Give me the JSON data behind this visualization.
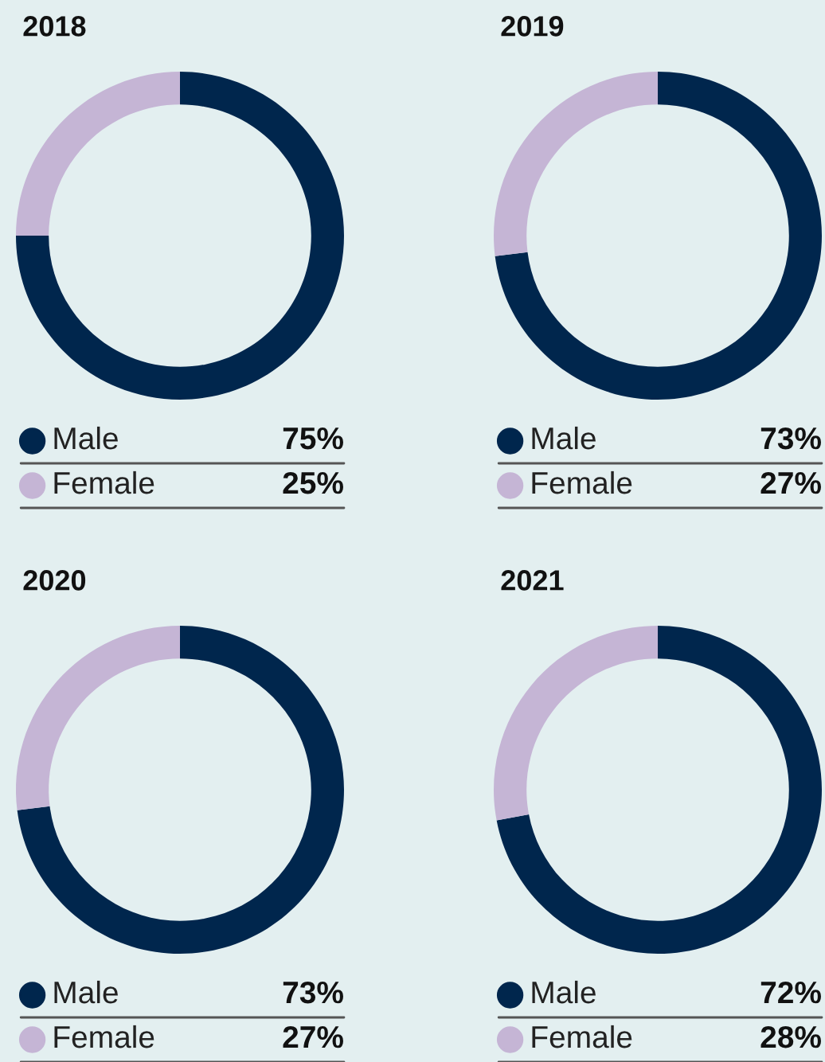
{
  "chart_data": [
    {
      "type": "donut",
      "title": "2018",
      "categories": [
        "Male",
        "Female"
      ],
      "values": [
        75,
        25
      ],
      "value_labels": [
        "75%",
        "25%"
      ],
      "colors": [
        "#00264d",
        "#c5b5d5"
      ],
      "legend": "bottom"
    },
    {
      "type": "donut",
      "title": "2019",
      "categories": [
        "Male",
        "Female"
      ],
      "values": [
        73,
        27
      ],
      "value_labels": [
        "73%",
        "27%"
      ],
      "colors": [
        "#00264d",
        "#c5b5d5"
      ],
      "legend": "bottom"
    },
    {
      "type": "donut",
      "title": "2020",
      "categories": [
        "Male",
        "Female"
      ],
      "values": [
        73,
        27
      ],
      "value_labels": [
        "73%",
        "27%"
      ],
      "colors": [
        "#00264d",
        "#c5b5d5"
      ],
      "legend": "bottom"
    },
    {
      "type": "donut",
      "title": "2021",
      "categories": [
        "Male",
        "Female"
      ],
      "values": [
        72,
        28
      ],
      "value_labels": [
        "72%",
        "28%"
      ],
      "colors": [
        "#00264d",
        "#c5b5d5"
      ],
      "legend": "bottom"
    }
  ]
}
